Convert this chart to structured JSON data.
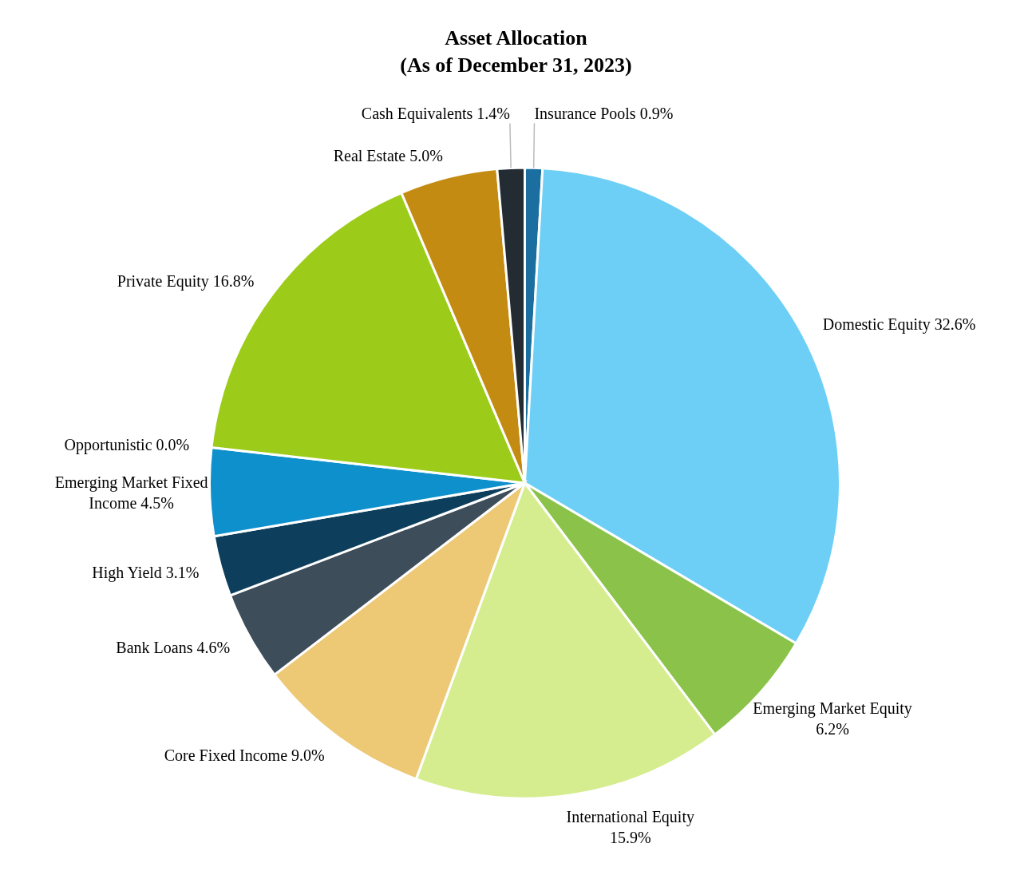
{
  "chart_data": {
    "type": "pie",
    "title": "Asset Allocation\n(As of December 31, 2023)",
    "categories": [
      "Insurance Pools",
      "Domestic Equity",
      "Emerging Market Equity",
      "International Equity",
      "Core Fixed Income",
      "Bank Loans",
      "High Yield",
      "Emerging Market Fixed Income",
      "Opportunistic",
      "Private Equity",
      "Real Estate",
      "Cash Equivalents"
    ],
    "values": [
      0.9,
      32.6,
      6.2,
      15.9,
      9.0,
      4.6,
      3.1,
      4.5,
      0.0,
      16.8,
      5.0,
      1.4
    ],
    "value_labels": [
      "0.9%",
      "32.6%",
      "6.2%",
      "15.9%",
      "9.0%",
      "4.6%",
      "3.1%",
      "4.5%",
      "0.0%",
      "16.8%",
      "5.0%",
      "1.4%"
    ],
    "colors": [
      "#1a6fa0",
      "#6dcff6",
      "#8bc34a",
      "#d5ed8f",
      "#edc875",
      "#3e4d5a",
      "#0d3f5c",
      "#0e90cc",
      "#0e90cc",
      "#9ccc19",
      "#c48b12",
      "#232b33"
    ],
    "data_labels": true
  }
}
